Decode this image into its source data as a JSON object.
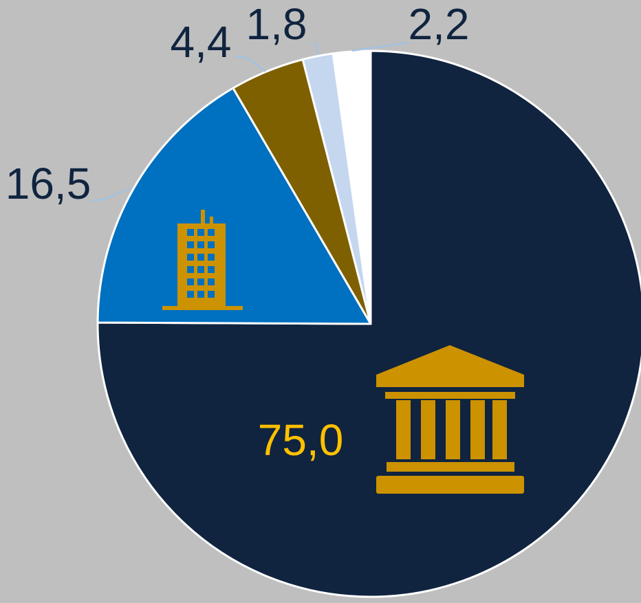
{
  "chart_data": {
    "type": "pie",
    "values": [
      75.0,
      16.5,
      4.4,
      1.8,
      2.2
    ],
    "value_labels": [
      "75,0",
      "16,5",
      "4,4",
      "1,8",
      "2,2"
    ],
    "colors": [
      "#10243f",
      "#0070c0",
      "#7f6000",
      "#c5d6ef",
      "#ffffff"
    ],
    "label_colors": [
      "#ffc000",
      "#10243f",
      "#10243f",
      "#10243f",
      "#10243f"
    ]
  }
}
